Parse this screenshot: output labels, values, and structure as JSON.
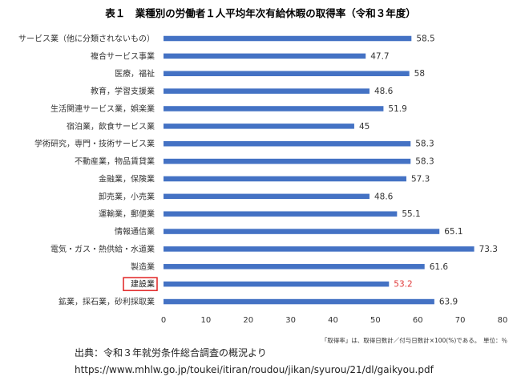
{
  "chart_data": {
    "type": "bar",
    "orientation": "horizontal",
    "title": "表１　業種別の労働者１人平均年次有給休暇の取得率（令和３年度）",
    "categories": [
      "サービス業（他に分類されないもの）",
      "複合サービス事業",
      "医療，福祉",
      "教育，学習支援業",
      "生活関連サービス業，娯楽業",
      "宿泊業，飲食サービス業",
      "学術研究，専門・技術サービス業",
      "不動産業，物品賃貸業",
      "金融業，保険業",
      "卸売業，小売業",
      "運輸業，郵便業",
      "情報通信業",
      "電気・ガス・熱供給・水道業",
      "製造業",
      "建設業",
      "鉱業，採石業，砂利採取業"
    ],
    "values": [
      58.5,
      47.7,
      58,
      48.6,
      51.9,
      45,
      58.3,
      58.3,
      57.3,
      48.6,
      55.1,
      65.1,
      73.3,
      61.6,
      53.2,
      63.9
    ],
    "value_labels": [
      "58.5",
      "47.7",
      "58",
      "48.6",
      "51.9",
      "45",
      "58.3",
      "58.3",
      "57.3",
      "48.6",
      "55.1",
      "65.1",
      "73.3",
      "61.6",
      "53.2",
      "63.9"
    ],
    "highlight_index": 14,
    "xlim": [
      0,
      80
    ],
    "xticks": [
      0,
      10,
      20,
      30,
      40,
      50,
      60,
      70,
      80
    ],
    "xtick_labels": [
      "0",
      "10",
      "20",
      "30",
      "40",
      "50",
      "60",
      "70",
      "80"
    ],
    "grid": false,
    "bar_color": "#4472C4",
    "highlight_label_color": "#E03A3A",
    "highlight_box_color": "#E02020",
    "note": "「取得率」は、取得日数計／付与日数計×100(%)である。　単位：％"
  },
  "source": {
    "line1": "出典：令和３年就労条件総合調査の概況より",
    "line2": "https://www.mhlw.go.jp/toukei/itiran/roudou/jikan/syurou/21/dl/gaikyou.pdf"
  }
}
